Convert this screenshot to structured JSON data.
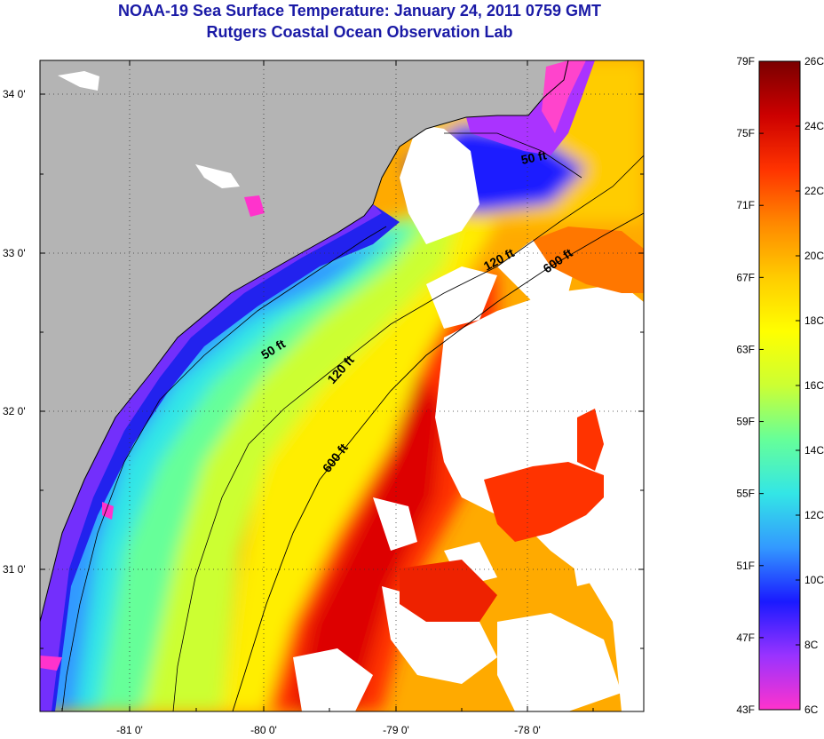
{
  "title": {
    "line1": "NOAA-19 Sea Surface Temperature:  January 24, 2011 0759 GMT",
    "line2": "Rutgers Coastal Ocean Observation Lab"
  },
  "map": {
    "lat_labels": [
      "34 0'",
      "33 0'",
      "32 0'",
      "31 0'"
    ],
    "lon_labels": [
      "-81 0'",
      "-80 0'",
      "-79 0'",
      "-78 0'"
    ],
    "contours": [
      "50 ft",
      "120 ft",
      "600 ft",
      "50 ft",
      "120 ft",
      "600 ft"
    ],
    "colors": {
      "land": "#b4b4b4",
      "cloud": "#ffffff",
      "coast_line": "#000000"
    }
  },
  "colorbar": {
    "fahrenheit_labels": [
      "79F",
      "75F",
      "71F",
      "67F",
      "63F",
      "59F",
      "55F",
      "51F",
      "47F",
      "43F"
    ],
    "celsius_labels": [
      "26C",
      "24C",
      "22C",
      "20C",
      "18C",
      "16C",
      "14C",
      "12C",
      "10C",
      "8C",
      "6C"
    ],
    "range_f": [
      43,
      79
    ],
    "range_c": [
      6,
      26
    ],
    "gradient_colors": [
      "#ff33cc",
      "#9933ff",
      "#1a1aff",
      "#3399ff",
      "#33e6e6",
      "#66ff99",
      "#ccff33",
      "#ffff00",
      "#ffcc00",
      "#ff8800",
      "#ff3300",
      "#cc0000",
      "#7a0000"
    ]
  }
}
